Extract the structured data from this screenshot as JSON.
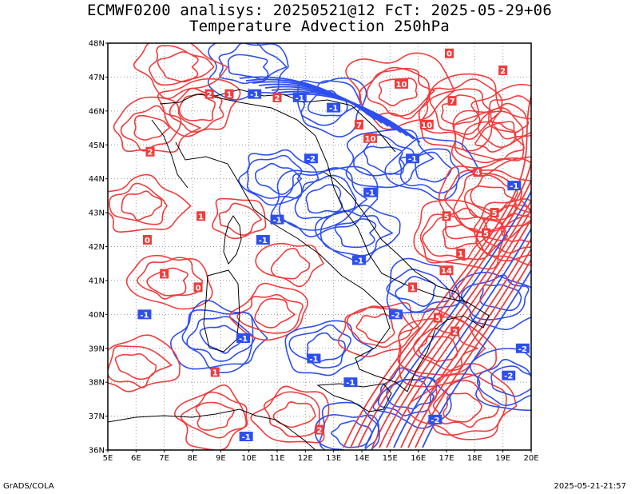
{
  "title_line1": "ECMWF0200 analisys: 20250521@12 FcT: 2025-05-29+06",
  "title_line2": "Temperature Advection 250hPa",
  "footer_left": "GrADS/COLA",
  "footer_right": "2025-05-21-21:57",
  "colors": {
    "positive": "#f03c3c",
    "negative": "#2e4ff0",
    "grid": "#999999",
    "coast": "#000000"
  },
  "chart_data": {
    "type": "map",
    "xlim": [
      5,
      20
    ],
    "ylim": [
      36,
      48
    ],
    "x_ticks": [
      "5E",
      "6E",
      "7E",
      "8E",
      "9E",
      "10E",
      "11E",
      "12E",
      "13E",
      "14E",
      "15E",
      "16E",
      "17E",
      "18E",
      "19E",
      "20E"
    ],
    "y_ticks": [
      "36N",
      "37N",
      "38N",
      "39N",
      "40N",
      "41N",
      "42N",
      "43N",
      "44N",
      "45N",
      "46N",
      "47N",
      "48N"
    ],
    "contour_labels": [
      {
        "lon": 6.5,
        "lat": 44.8,
        "value": "2",
        "sign": "pos"
      },
      {
        "lon": 8.6,
        "lat": 46.5,
        "value": "2",
        "sign": "pos"
      },
      {
        "lon": 9.3,
        "lat": 46.5,
        "value": "1",
        "sign": "pos"
      },
      {
        "lon": 10.2,
        "lat": 46.5,
        "value": "-1",
        "sign": "neg"
      },
      {
        "lon": 11.0,
        "lat": 46.4,
        "value": "2",
        "sign": "pos"
      },
      {
        "lon": 11.8,
        "lat": 46.4,
        "value": "-1",
        "sign": "neg"
      },
      {
        "lon": 13.0,
        "lat": 46.1,
        "value": "-1",
        "sign": "neg"
      },
      {
        "lon": 14.3,
        "lat": 45.2,
        "value": "10",
        "sign": "pos"
      },
      {
        "lon": 13.9,
        "lat": 45.6,
        "value": "7",
        "sign": "pos"
      },
      {
        "lon": 15.4,
        "lat": 46.8,
        "value": "10",
        "sign": "pos"
      },
      {
        "lon": 16.3,
        "lat": 45.6,
        "value": "10",
        "sign": "pos"
      },
      {
        "lon": 17.2,
        "lat": 46.3,
        "value": "7",
        "sign": "pos"
      },
      {
        "lon": 15.8,
        "lat": 44.6,
        "value": "-1",
        "sign": "neg"
      },
      {
        "lon": 18.1,
        "lat": 44.2,
        "value": "4",
        "sign": "pos"
      },
      {
        "lon": 17.0,
        "lat": 42.9,
        "value": "5",
        "sign": "pos"
      },
      {
        "lon": 17.5,
        "lat": 41.8,
        "value": "1",
        "sign": "pos"
      },
      {
        "lon": 18.4,
        "lat": 42.4,
        "value": "5",
        "sign": "pos"
      },
      {
        "lon": 18.7,
        "lat": 43.0,
        "value": "5",
        "sign": "pos"
      },
      {
        "lon": 17.0,
        "lat": 41.3,
        "value": "14",
        "sign": "pos"
      },
      {
        "lon": 12.2,
        "lat": 44.6,
        "value": "-2",
        "sign": "neg"
      },
      {
        "lon": 14.3,
        "lat": 43.6,
        "value": "-1",
        "sign": "neg"
      },
      {
        "lon": 11.0,
        "lat": 42.8,
        "value": "-1",
        "sign": "neg"
      },
      {
        "lon": 10.5,
        "lat": 42.2,
        "value": "-1",
        "sign": "neg"
      },
      {
        "lon": 13.9,
        "lat": 41.6,
        "value": "-1",
        "sign": "neg"
      },
      {
        "lon": 15.8,
        "lat": 40.8,
        "value": "1",
        "sign": "pos"
      },
      {
        "lon": 15.2,
        "lat": 40.0,
        "value": "-2",
        "sign": "neg"
      },
      {
        "lon": 16.7,
        "lat": 39.9,
        "value": "5",
        "sign": "pos"
      },
      {
        "lon": 17.3,
        "lat": 39.5,
        "value": "2",
        "sign": "pos"
      },
      {
        "lon": 8.3,
        "lat": 42.9,
        "value": "1",
        "sign": "pos"
      },
      {
        "lon": 8.2,
        "lat": 40.8,
        "value": "0",
        "sign": "pos"
      },
      {
        "lon": 7.0,
        "lat": 41.2,
        "value": "1",
        "sign": "pos"
      },
      {
        "lon": 6.3,
        "lat": 40.0,
        "value": "-1",
        "sign": "neg"
      },
      {
        "lon": 8.8,
        "lat": 38.3,
        "value": "1",
        "sign": "pos"
      },
      {
        "lon": 9.8,
        "lat": 39.3,
        "value": "-1",
        "sign": "neg"
      },
      {
        "lon": 12.3,
        "lat": 38.7,
        "value": "-1",
        "sign": "neg"
      },
      {
        "lon": 13.6,
        "lat": 38.0,
        "value": "-1",
        "sign": "neg"
      },
      {
        "lon": 9.9,
        "lat": 36.4,
        "value": "-1",
        "sign": "neg"
      },
      {
        "lon": 12.5,
        "lat": 36.6,
        "value": "2",
        "sign": "pos"
      },
      {
        "lon": 16.6,
        "lat": 36.9,
        "value": "-2",
        "sign": "neg"
      },
      {
        "lon": 19.2,
        "lat": 38.2,
        "value": "-2",
        "sign": "neg"
      },
      {
        "lon": 19.7,
        "lat": 39.0,
        "value": "-2",
        "sign": "neg"
      },
      {
        "lon": 19.4,
        "lat": 43.8,
        "value": "-1",
        "sign": "neg"
      },
      {
        "lon": 6.4,
        "lat": 42.2,
        "value": "0",
        "sign": "pos"
      },
      {
        "lon": 19.0,
        "lat": 47.2,
        "value": "2",
        "sign": "pos"
      },
      {
        "lon": 17.1,
        "lat": 47.7,
        "value": "0",
        "sign": "pos"
      }
    ]
  }
}
